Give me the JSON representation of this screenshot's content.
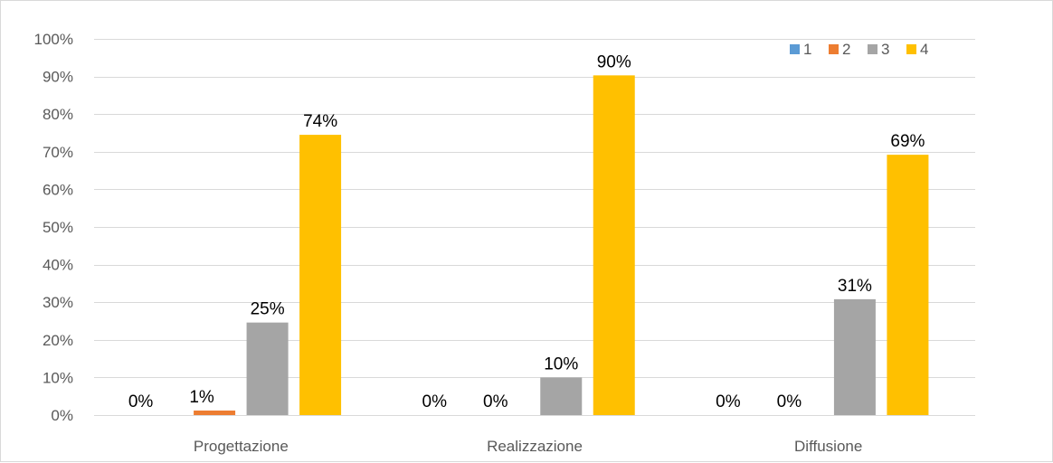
{
  "chart_data": {
    "type": "bar",
    "title": "",
    "xlabel": "",
    "ylabel": "",
    "categories": [
      "Progettazione",
      "Realizzazione",
      "Diffusione"
    ],
    "series": [
      {
        "name": "1",
        "color": "#5b9bd5",
        "values": [
          0,
          0,
          0
        ]
      },
      {
        "name": "2",
        "color": "#ed7d31",
        "values": [
          1,
          0,
          0
        ]
      },
      {
        "name": "3",
        "color": "#a5a5a5",
        "values": [
          25,
          10,
          31
        ]
      },
      {
        "name": "4",
        "color": "#ffc000",
        "values": [
          74,
          90,
          69
        ]
      }
    ],
    "data_labels": [
      [
        "0%",
        "0%",
        "0%"
      ],
      [
        "1%",
        "0%",
        "0%"
      ],
      [
        "25%",
        "10%",
        "31%"
      ],
      [
        "74%",
        "90%",
        "69%"
      ]
    ],
    "bar_heights_pct": [
      [
        0,
        0,
        0
      ],
      [
        1.2,
        0,
        0
      ],
      [
        24.6,
        10,
        30.8
      ],
      [
        74.5,
        90.3,
        69.2
      ]
    ],
    "ylim": [
      0,
      100
    ],
    "yticks": [
      0,
      10,
      20,
      30,
      40,
      50,
      60,
      70,
      80,
      90,
      100
    ],
    "ytick_labels": [
      "0%",
      "10%",
      "20%",
      "30%",
      "40%",
      "50%",
      "60%",
      "70%",
      "80%",
      "90%",
      "100%"
    ],
    "grid": true,
    "legend_position": "top-right",
    "gridline_color": "#d9d9d9",
    "axis_color": "#d9d9d9"
  }
}
